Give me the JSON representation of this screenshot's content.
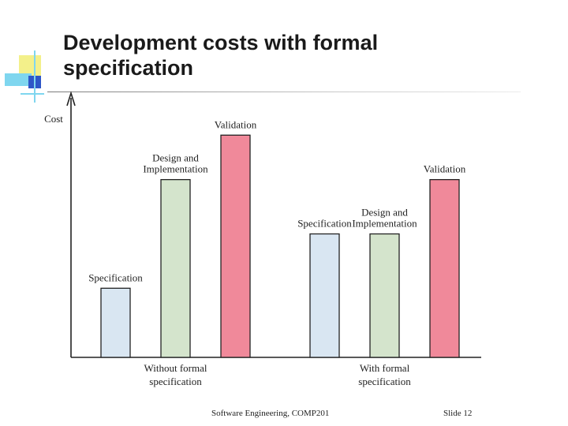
{
  "slide": {
    "title_lines": [
      "Development costs with formal",
      "specification"
    ],
    "footer": "Software Engineering, COMP201",
    "slide_label": "Slide",
    "slide_number": "12"
  },
  "colors": {
    "specification": "#d9e6f2",
    "design": "#d4e4cc",
    "validation": "#f0899a",
    "outline": "#222222",
    "deco_yellow": "#f3f08a",
    "deco_cyan": "#7fd6ef",
    "deco_blue": "#2e56c7"
  },
  "chart_data": {
    "type": "bar",
    "ylabel": "Cost",
    "ylim": [
      0,
      10
    ],
    "groups": [
      {
        "label_lines": [
          "Without formal",
          "specification"
        ],
        "bars": [
          {
            "category": "specification",
            "label_lines": [
              "Specification"
            ],
            "value": 2.8
          },
          {
            "category": "design",
            "label_lines": [
              "Design and",
              "Implementation"
            ],
            "value": 7.2
          },
          {
            "category": "validation",
            "label_lines": [
              "Validation"
            ],
            "value": 9.0
          }
        ]
      },
      {
        "label_lines": [
          "With formal",
          "specification"
        ],
        "bars": [
          {
            "category": "specification",
            "label_lines": [
              "Specification"
            ],
            "value": 5.0
          },
          {
            "category": "design",
            "label_lines": [
              "Design and",
              "Implementation"
            ],
            "value": 5.0
          },
          {
            "category": "validation",
            "label_lines": [
              "Validation"
            ],
            "value": 7.2
          }
        ]
      }
    ]
  }
}
